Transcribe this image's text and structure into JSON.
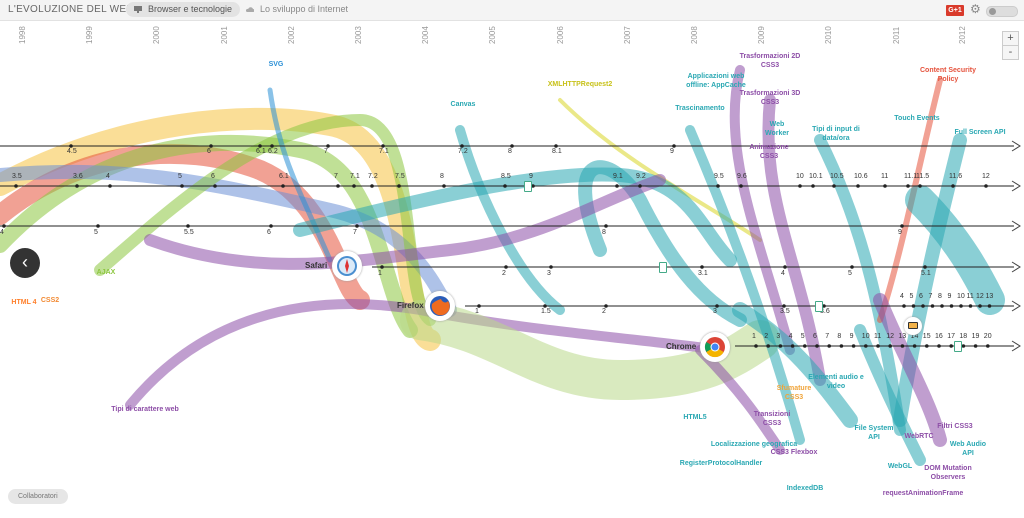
{
  "app": {
    "title": "L'EVOLUZIONE DEL WEB"
  },
  "tabs": [
    {
      "label": "Browser e tecnologie",
      "active": true
    },
    {
      "label": "Lo sviluppo di Internet",
      "active": false
    }
  ],
  "header": {
    "gplus_label": "G+1"
  },
  "zoom": {
    "plus": "+",
    "minus": "-"
  },
  "footer": {
    "collab_label": "Collaboratori"
  },
  "nav": {
    "back_symbol": "‹"
  },
  "years": [
    "1998",
    "1999",
    "2000",
    "2001",
    "2002",
    "2003",
    "2004",
    "2005",
    "2006",
    "2007",
    "2008",
    "2009",
    "2010",
    "2011",
    "2012"
  ],
  "browsers": [
    "Safari",
    "Firefox",
    "Chrome"
  ],
  "browser_logos": [
    "safari-logo-icon",
    "firefox-logo-icon",
    "chrome-logo-icon"
  ],
  "track_versions": [
    [
      "4.5",
      "6",
      "6.1",
      "6.2",
      "7",
      "7.1",
      "7.2",
      "8",
      "8.1",
      "9"
    ],
    [
      "3.5",
      "3.6",
      "4",
      "5",
      "6",
      "6.1",
      "7",
      "7.1",
      "7.2",
      "7.5",
      "8",
      "8.5",
      "9",
      "9.1",
      "9.2",
      "9.5",
      "9.6",
      "10",
      "10.1",
      "10.5",
      "10.6",
      "11",
      "11.1",
      "11.5",
      "11.6",
      "12"
    ],
    [
      "4",
      "5",
      "5.5",
      "6",
      "7",
      "8",
      "9"
    ],
    [
      "1",
      "2",
      "3",
      "3.1",
      "4",
      "5",
      "5.1"
    ],
    [
      "1",
      "1.5",
      "2",
      "3",
      "3.5",
      "3.6",
      "4",
      "5",
      "6",
      "7",
      "8",
      "9",
      "10",
      "11",
      "12",
      "13"
    ],
    [
      "1",
      "2",
      "3",
      "4",
      "5",
      "6",
      "7",
      "8",
      "9",
      "10",
      "11",
      "12",
      "13",
      "14",
      "15",
      "16",
      "17",
      "18",
      "19",
      "20"
    ]
  ],
  "features": [
    "HTML 4",
    "CSS2",
    "AJAX",
    "SVG",
    "Tipi di carattere web",
    "Canvas",
    "XMLHTTPRequest2",
    "Applicazioni web offline: AppCache",
    "Trascinamento",
    "Trasformazioni 2D CSS3",
    "Trasformazioni 3D CSS3",
    "Web Worker",
    "Animazione CSS3",
    "Tipi di input di data/ora",
    "Content Security Policy",
    "Touch Events",
    "Full Screen API",
    "HTML5",
    "Transizioni CSS3",
    "Localizzazione geografica",
    "RegisterProtocolHandler",
    "CSS3 Flexbox",
    "Sfumature CSS3",
    "Elementi audio e video",
    "IndexedDB",
    "File System API",
    "WebGL",
    "WebRTC",
    "requestAnimationFrame",
    "DOM Mutation Observers",
    "Filtri CSS3",
    "Web Audio API"
  ],
  "colors": {
    "html4": "#ff7f2a",
    "css2": "#f28a33",
    "ajax": "#8cc63f",
    "svg": "#2a8fd6",
    "webfonts": "#8d4ea7",
    "canvas": "#2aa8b3",
    "xhr2": "#d9d627",
    "teal": "#2aa8b3",
    "purple": "#8d4ea7",
    "red": "#e5533d",
    "orange": "#f0a43a",
    "blue": "#2a8fd6"
  }
}
